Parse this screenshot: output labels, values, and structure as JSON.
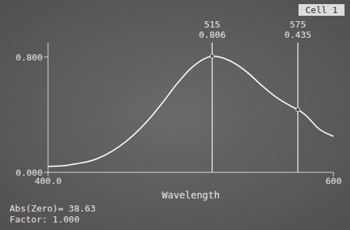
{
  "chart_data": {
    "type": "line",
    "x_label": "Wavelength",
    "badge": "Cell 1",
    "annotations": [
      "Abs(Zero)= 38.63",
      "Factor: 1.000"
    ],
    "x": [
      400,
      410,
      420,
      430,
      440,
      450,
      460,
      470,
      480,
      490,
      500,
      510,
      515,
      520,
      530,
      540,
      550,
      560,
      570,
      575,
      580,
      590,
      600
    ],
    "values": [
      0.04,
      0.045,
      0.06,
      0.08,
      0.12,
      0.18,
      0.26,
      0.36,
      0.48,
      0.61,
      0.72,
      0.79,
      0.806,
      0.8,
      0.76,
      0.69,
      0.6,
      0.52,
      0.46,
      0.435,
      0.4,
      0.3,
      0.25
    ],
    "color": "#f2f2f2",
    "xlim": [
      400,
      600
    ],
    "xticks": [
      {
        "value": 400,
        "label": "400.0"
      },
      600
    ],
    "ylim": [
      0,
      0.9
    ],
    "yticks": [
      {
        "value": 0,
        "label": "0.000"
      },
      {
        "value": 0.8,
        "label": "0.800"
      }
    ],
    "markers": [
      {
        "x": 515,
        "y": 0.806
      },
      {
        "x": 575,
        "y": 0.435
      }
    ],
    "grid": false
  }
}
